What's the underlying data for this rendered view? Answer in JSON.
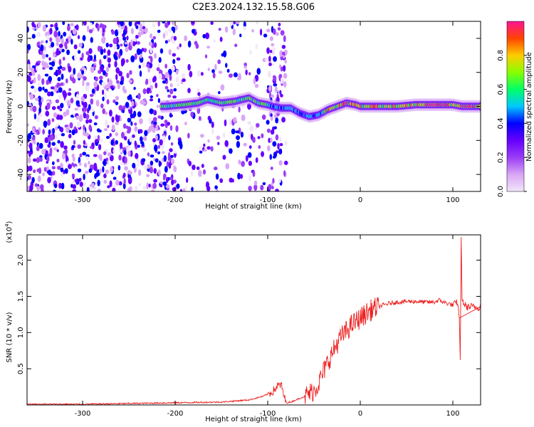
{
  "title": "C2E3.2024.132.15.58.G06",
  "chart_data": [
    {
      "type": "heatmap",
      "description_axes": true,
      "xlabel": "Height of straight line (km)",
      "ylabel": "Frequency (Hz)",
      "xlim": [
        -360,
        130
      ],
      "ylim": [
        -50,
        50
      ],
      "xticks": [
        -300,
        -200,
        -100,
        0,
        100
      ],
      "yticks": [
        -40,
        -20,
        0,
        20,
        40
      ],
      "ridge": [
        [
          -210,
          0
        ],
        [
          -190,
          1
        ],
        [
          -175,
          2
        ],
        [
          -165,
          4
        ],
        [
          -150,
          2
        ],
        [
          -135,
          3
        ],
        [
          -120,
          5
        ],
        [
          -110,
          2
        ],
        [
          -100,
          1
        ],
        [
          -95,
          0
        ],
        [
          -85,
          -1
        ],
        [
          -75,
          -1
        ],
        [
          -65,
          -4
        ],
        [
          -55,
          -6
        ],
        [
          -45,
          -5
        ],
        [
          -35,
          -2
        ],
        [
          -25,
          0
        ],
        [
          -15,
          2
        ],
        [
          -5,
          1
        ],
        [
          0,
          0
        ],
        [
          20,
          0
        ],
        [
          40,
          0
        ],
        [
          60,
          1
        ],
        [
          80,
          1
        ],
        [
          100,
          1
        ],
        [
          110,
          0
        ],
        [
          130,
          0
        ]
      ],
      "colorbar": {
        "label": "Normalized spectral amplitude",
        "ticks": [
          0.0,
          0.2,
          0.4,
          0.6,
          0.8
        ],
        "range": [
          0,
          1
        ],
        "colormap": [
          "#f2e6fa",
          "#d9a6f5",
          "#9a3cf5",
          "#6600ff",
          "#0000ff",
          "#00c8ff",
          "#00ff66",
          "#88ff00",
          "#ffcc00",
          "#ff4400",
          "#ff1493"
        ]
      }
    },
    {
      "type": "line",
      "xlabel": "Height of straight line (km)",
      "ylabel": "SNR (10 * v/v)",
      "exponent_label": "(x10",
      "exponent_power": "4",
      "exponent_close": ")",
      "xlim": [
        -360,
        130
      ],
      "ylim": [
        0,
        2.35
      ],
      "xticks": [
        -300,
        -200,
        -100,
        0,
        100
      ],
      "yticks": [
        0.5,
        1.0,
        1.5,
        2.0
      ],
      "ytick_labels": [
        "0.5",
        "1.0",
        "1.5",
        "2.0"
      ],
      "color": "#ee2222",
      "series": [
        {
          "x": [
            -360,
            -300,
            -250,
            -200,
            -150,
            -120,
            -105,
            -95,
            -90,
            -87,
            -85,
            -82,
            -80,
            -75,
            -60,
            -50,
            -45,
            -40,
            -35,
            -30,
            -25,
            -20,
            -15,
            -10,
            -5,
            0,
            10,
            20,
            30,
            40,
            50,
            60,
            70,
            80,
            85,
            90,
            95,
            100,
            105,
            107,
            108,
            109,
            110,
            112,
            115,
            120,
            125,
            130
          ],
          "y": [
            0.01,
            0.01,
            0.02,
            0.03,
            0.04,
            0.07,
            0.12,
            0.18,
            0.25,
            0.28,
            0.26,
            0.1,
            0.03,
            0.04,
            0.12,
            0.2,
            0.3,
            0.45,
            0.6,
            0.72,
            0.85,
            0.95,
            1.02,
            1.1,
            1.15,
            1.2,
            1.3,
            1.36,
            1.4,
            1.42,
            1.43,
            1.43,
            1.42,
            1.42,
            1.45,
            1.42,
            1.4,
            1.38,
            1.42,
            1.2,
            0.62,
            2.32,
            1.45,
            1.4,
            1.35,
            1.36,
            1.35,
            1.35
          ]
        }
      ]
    }
  ]
}
